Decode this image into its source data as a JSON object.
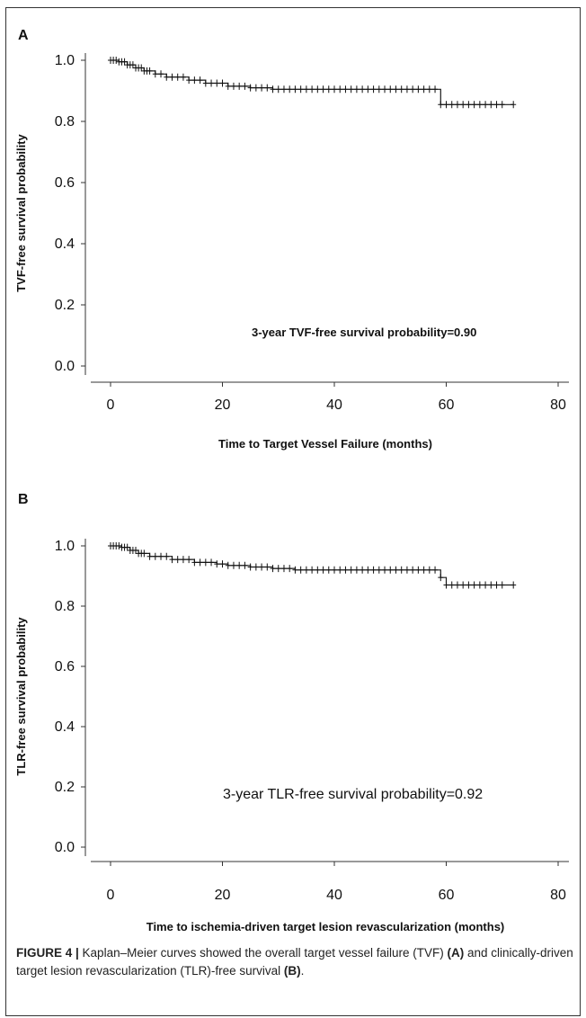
{
  "chart_data": [
    {
      "panel": "A",
      "type": "line",
      "ylabel": "TVF-free survival probability",
      "xlabel": "Time to Target Vessel Failure (months)",
      "xlim": [
        0,
        80
      ],
      "ylim": [
        0.0,
        1.0
      ],
      "x_ticks": [
        "0",
        "20",
        "40",
        "60",
        "80"
      ],
      "y_ticks": [
        "0.0",
        "0.2",
        "0.4",
        "0.6",
        "0.8",
        "1.0"
      ],
      "annotation": "3-year TVF-free survival probability=0.90",
      "series": [
        {
          "steps": [
            [
              0,
              1.0
            ],
            [
              1.5,
              0.995
            ],
            [
              3,
              0.985
            ],
            [
              4.5,
              0.975
            ],
            [
              6,
              0.965
            ],
            [
              8,
              0.955
            ],
            [
              10,
              0.945
            ],
            [
              14,
              0.935
            ],
            [
              17,
              0.925
            ],
            [
              21,
              0.915
            ],
            [
              25,
              0.91
            ],
            [
              29,
              0.905
            ],
            [
              58,
              0.905
            ],
            [
              59,
              0.855
            ],
            [
              72,
              0.855
            ]
          ],
          "censored": [
            0,
            0.5,
            1,
            1.5,
            2,
            2.5,
            3,
            3.5,
            4,
            4.5,
            5,
            5.5,
            6,
            6.5,
            7,
            8,
            9,
            10,
            11,
            12,
            13,
            14,
            15,
            16,
            17,
            18,
            19,
            20,
            21,
            22,
            23,
            24,
            25,
            26,
            27,
            28,
            29,
            30,
            31,
            32,
            33,
            34,
            35,
            36,
            37,
            38,
            39,
            40,
            41,
            42,
            43,
            44,
            45,
            46,
            47,
            48,
            49,
            50,
            51,
            52,
            53,
            54,
            55,
            56,
            57,
            58,
            59,
            60,
            61,
            62,
            63,
            64,
            65,
            66,
            67,
            68,
            69,
            70,
            72
          ]
        }
      ]
    },
    {
      "panel": "B",
      "type": "line",
      "ylabel": "TLR-free survival probability",
      "xlabel": "Time to ischemia-driven target lesion revascularization (months)",
      "xlim": [
        0,
        80
      ],
      "ylim": [
        0.0,
        1.0
      ],
      "x_ticks": [
        "0",
        "20",
        "40",
        "60",
        "80"
      ],
      "y_ticks": [
        "0.0",
        "0.2",
        "0.4",
        "0.6",
        "0.8",
        "1.0"
      ],
      "annotation": "3-year TLR-free survival probability=0.92",
      "series": [
        {
          "steps": [
            [
              0,
              1.0
            ],
            [
              2,
              0.995
            ],
            [
              3.5,
              0.985
            ],
            [
              5,
              0.975
            ],
            [
              7,
              0.965
            ],
            [
              11,
              0.955
            ],
            [
              15,
              0.945
            ],
            [
              19,
              0.94
            ],
            [
              21,
              0.935
            ],
            [
              25,
              0.93
            ],
            [
              29,
              0.925
            ],
            [
              33,
              0.92
            ],
            [
              58,
              0.92
            ],
            [
              59,
              0.895
            ],
            [
              60,
              0.87
            ],
            [
              72,
              0.87
            ]
          ],
          "censored": [
            0,
            0.5,
            1,
            1.5,
            2,
            2.5,
            3,
            3.5,
            4,
            4.5,
            5,
            5.5,
            6,
            7,
            8,
            9,
            10,
            11,
            12,
            13,
            14,
            15,
            16,
            17,
            18,
            19,
            20,
            21,
            22,
            23,
            24,
            25,
            26,
            27,
            28,
            29,
            30,
            31,
            32,
            33,
            34,
            35,
            36,
            37,
            38,
            39,
            40,
            41,
            42,
            43,
            44,
            45,
            46,
            47,
            48,
            49,
            50,
            51,
            52,
            53,
            54,
            55,
            56,
            57,
            58,
            59,
            60,
            61,
            62,
            63,
            64,
            65,
            66,
            67,
            68,
            69,
            70,
            72
          ]
        }
      ]
    }
  ],
  "caption": {
    "lead": "FIGURE 4 |",
    "text_1": " Kaplan–Meier curves showed the overall target vessel failure (TVF) ",
    "ref_a": "(A)",
    "text_2": " and clinically-driven target lesion revascularization (TLR)-free survival ",
    "ref_b": "(B)",
    "text_3": "."
  }
}
